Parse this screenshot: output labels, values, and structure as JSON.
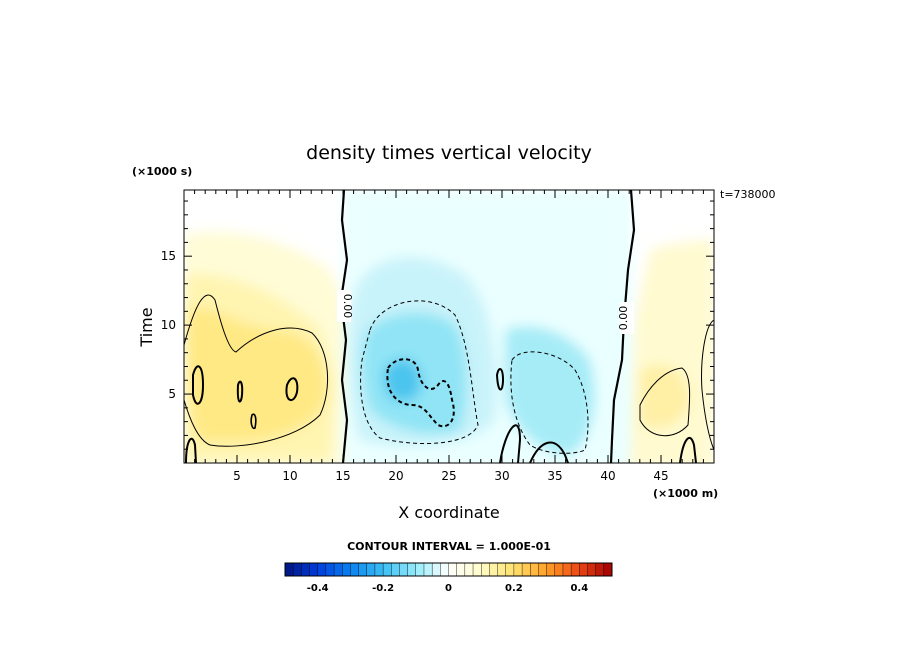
{
  "chart_data": {
    "type": "heatmap",
    "title": "density times vertical velocity",
    "xlabel": "X coordinate",
    "ylabel": "Time",
    "x_unit": "(×1000 m)",
    "y_unit": "(×1000 s)",
    "time_label": "t=738000",
    "xlim": [
      0,
      50
    ],
    "ylim": [
      0,
      19.8
    ],
    "x_ticks": [
      "5",
      "10",
      "15",
      "20",
      "25",
      "30",
      "35",
      "40",
      "45"
    ],
    "y_ticks": [
      "5",
      "10",
      "15"
    ],
    "contour_labels": [
      "0.00",
      "0.00"
    ],
    "contour_interval_label": "CONTOUR INTERVAL = 1.000E-01",
    "colorbar_ticks": [
      "-0.4",
      "-0.2",
      "0",
      "0.2",
      "0.4"
    ],
    "colorbar_range": [
      -0.5,
      0.5
    ],
    "features": [
      {
        "kind": "positive",
        "x": 7,
        "t": 6,
        "value": 0.22
      },
      {
        "kind": "negative",
        "x": 22,
        "t": 6,
        "value": -0.28
      },
      {
        "kind": "negative",
        "x": 34,
        "t": 5,
        "value": -0.16
      },
      {
        "kind": "positive",
        "x": 45,
        "t": 5,
        "value": 0.14
      },
      {
        "kind": "zero-contour",
        "x": 15
      },
      {
        "kind": "zero-contour",
        "x": 42
      }
    ]
  }
}
